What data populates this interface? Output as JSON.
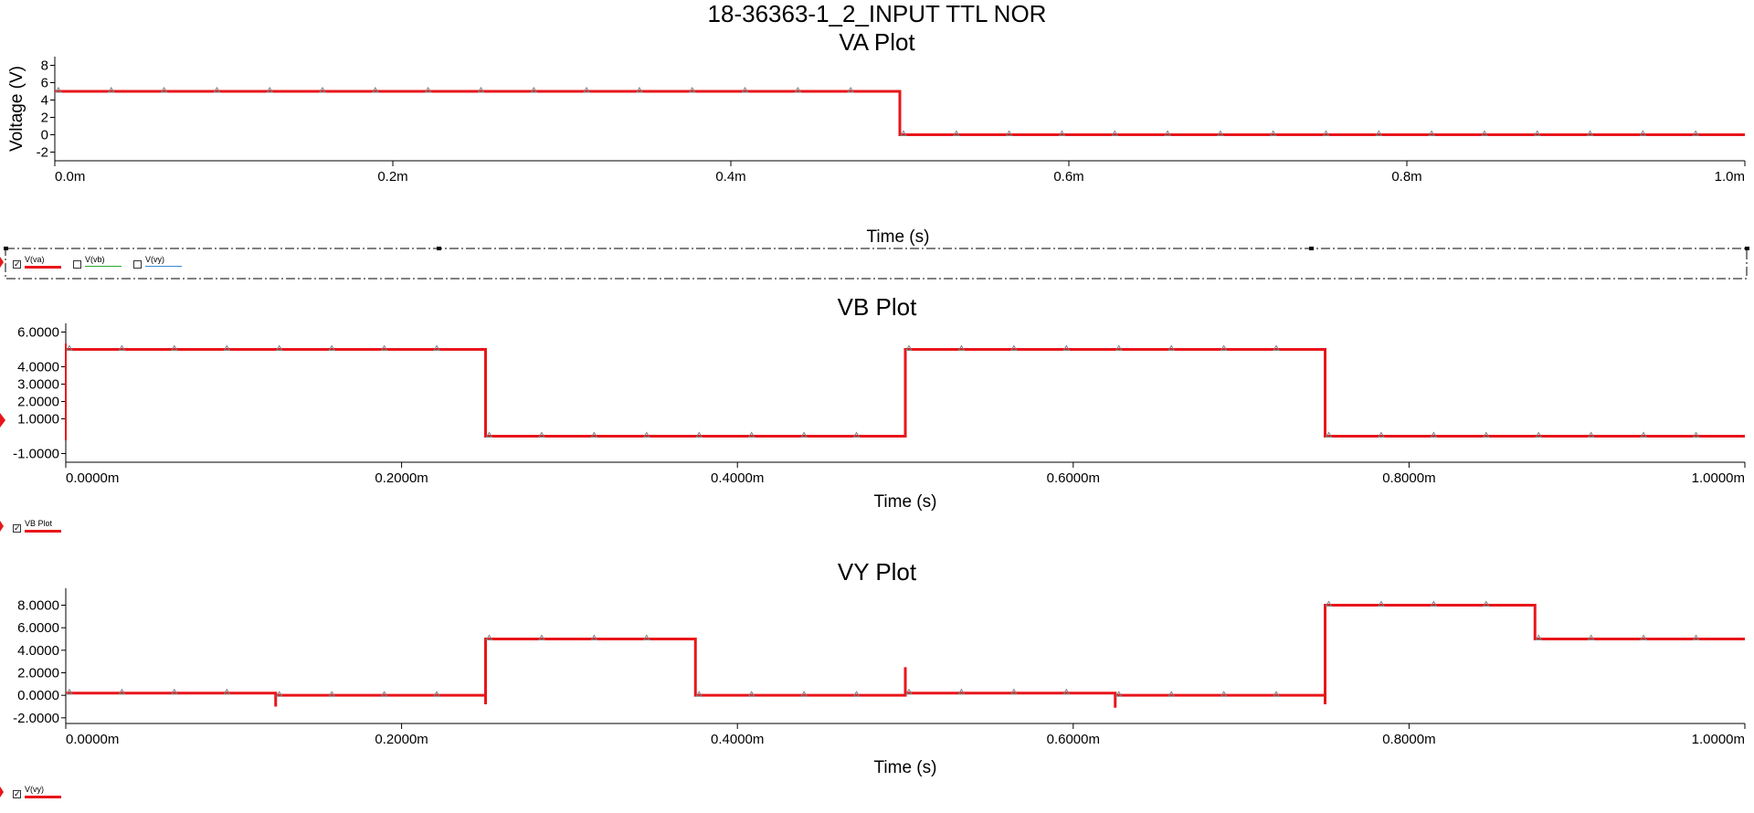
{
  "page_title": "18-36363-1_2_INPUT TTL NOR",
  "colors": {
    "trace": "#e8161b",
    "axis": "#000000",
    "marker": "#808080",
    "vb_legend": "#2aa832",
    "vy_legend": "#3a8ad8"
  },
  "chart_data": [
    {
      "id": "va",
      "type": "line",
      "title": "VA Plot",
      "xlabel": "Time (s)",
      "ylabel": "Voltage (V)",
      "xlim": [
        0,
        0.001
      ],
      "ylim": [
        -3,
        9
      ],
      "x_ticks": [
        0,
        0.0002,
        0.0004,
        0.0006,
        0.0008,
        0.001
      ],
      "x_tick_labels": [
        "0.0m",
        "0.2m",
        "0.4m",
        "0.6m",
        "0.8m",
        "1.0m"
      ],
      "y_ticks": [
        -2,
        0,
        2,
        4,
        6,
        8
      ],
      "y_tick_labels": [
        "-2",
        "0",
        "2",
        "4",
        "6",
        "8"
      ],
      "series": [
        {
          "name": "V(va)",
          "step_x": [
            0,
            0.0005,
            0.001
          ],
          "step_y": [
            5,
            0
          ]
        }
      ],
      "legend": [
        {
          "label": "V(va)",
          "checked": true,
          "color": "#e8161b"
        },
        {
          "label": "V(vb)",
          "checked": false,
          "color": "#2aa832"
        },
        {
          "label": "V(vy)",
          "checked": false,
          "color": "#3a8ad8"
        }
      ]
    },
    {
      "id": "vb",
      "type": "line",
      "title": "VB Plot",
      "xlabel": "Time (s)",
      "ylabel": "",
      "xlim": [
        0,
        0.001
      ],
      "ylim": [
        -1.5,
        6.5
      ],
      "x_ticks": [
        0,
        0.0002,
        0.0004,
        0.0006,
        0.0008,
        0.001
      ],
      "x_tick_labels": [
        "0.0000m",
        "0.2000m",
        "0.4000m",
        "0.6000m",
        "0.8000m",
        "1.0000m"
      ],
      "y_ticks": [
        -1,
        1,
        2,
        3,
        4,
        6
      ],
      "y_tick_labels": [
        "-1.0000",
        "1.0000",
        "2.0000",
        "3.0000",
        "4.0000",
        "6.0000"
      ],
      "series": [
        {
          "name": "V(vb)",
          "step_x": [
            0,
            0.00025,
            0.0005,
            0.00075,
            0.001
          ],
          "step_y": [
            5,
            0,
            5,
            0
          ]
        }
      ],
      "legend": [
        {
          "label": "VB Plot",
          "checked": true,
          "color": "#e8161b"
        }
      ]
    },
    {
      "id": "vy",
      "type": "line",
      "title": "VY Plot",
      "xlabel": "Time (s)",
      "ylabel": "",
      "xlim": [
        0,
        0.001
      ],
      "ylim": [
        -2.5,
        9.5
      ],
      "x_ticks": [
        0,
        0.0002,
        0.0004,
        0.0006,
        0.0008,
        0.001
      ],
      "x_tick_labels": [
        "0.0000m",
        "0.2000m",
        "0.4000m",
        "0.6000m",
        "0.8000m",
        "1.0000m"
      ],
      "y_ticks": [
        -2,
        0,
        2,
        4,
        6,
        8
      ],
      "y_tick_labels": [
        "-2.0000",
        "0.0000",
        "2.0000",
        "4.0000",
        "6.0000",
        "8.0000"
      ],
      "series": [
        {
          "name": "V(vy)",
          "points": [
            [
              0,
              0.2
            ],
            [
              0.000125,
              0.2
            ],
            [
              0.000125,
              -1.0
            ],
            [
              0.000125,
              0.0
            ],
            [
              0.00025,
              0.0
            ],
            [
              0.00025,
              -0.8
            ],
            [
              0.00025,
              5.0
            ],
            [
              0.000375,
              5.0
            ],
            [
              0.000375,
              0.0
            ],
            [
              0.0005,
              0.0
            ],
            [
              0.0005,
              2.5
            ],
            [
              0.0005,
              0.2
            ],
            [
              0.000625,
              0.2
            ],
            [
              0.000625,
              -1.1
            ],
            [
              0.000625,
              0.0
            ],
            [
              0.00075,
              0.0
            ],
            [
              0.00075,
              -0.8
            ],
            [
              0.00075,
              8.0
            ],
            [
              0.000875,
              8.0
            ],
            [
              0.000875,
              5.0
            ],
            [
              0.001,
              5.0
            ]
          ]
        }
      ],
      "legend": [
        {
          "label": "V(vy)",
          "checked": true,
          "color": "#e8161b"
        }
      ]
    }
  ]
}
